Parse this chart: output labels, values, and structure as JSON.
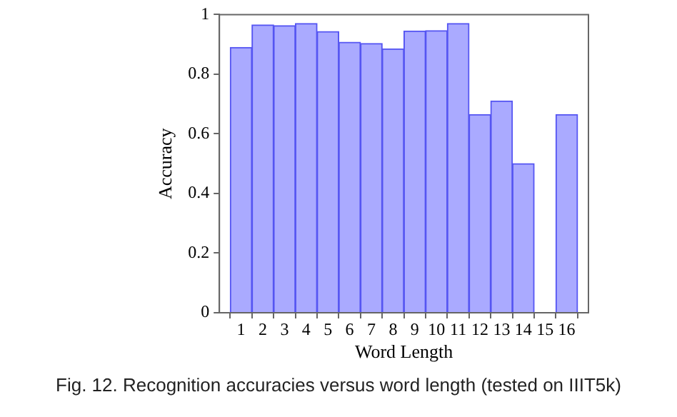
{
  "chart_data": {
    "type": "bar",
    "xlabel": "Word Length",
    "ylabel": "Accuracy",
    "x": [
      1,
      2,
      3,
      4,
      5,
      6,
      7,
      8,
      9,
      10,
      11,
      12,
      13,
      14,
      15,
      16
    ],
    "values": [
      0.89,
      0.965,
      0.963,
      0.97,
      0.943,
      0.907,
      0.903,
      0.885,
      0.945,
      0.946,
      0.97,
      0.665,
      0.71,
      0.5,
      0,
      0.665
    ],
    "color": "#aaaaff",
    "xlim": [
      0,
      17
    ],
    "xticks": [
      1,
      2,
      3,
      4,
      5,
      6,
      7,
      8,
      9,
      10,
      11,
      12,
      13,
      14,
      15,
      16
    ],
    "ylim": [
      0,
      1
    ],
    "yticks": [
      0,
      0.2,
      0.4,
      0.6,
      0.8,
      1
    ],
    "grid": false,
    "legend": false,
    "annotations": [
      "Fig. 12. Recognition accuracies versus word length (tested on IIIT5k)"
    ]
  }
}
